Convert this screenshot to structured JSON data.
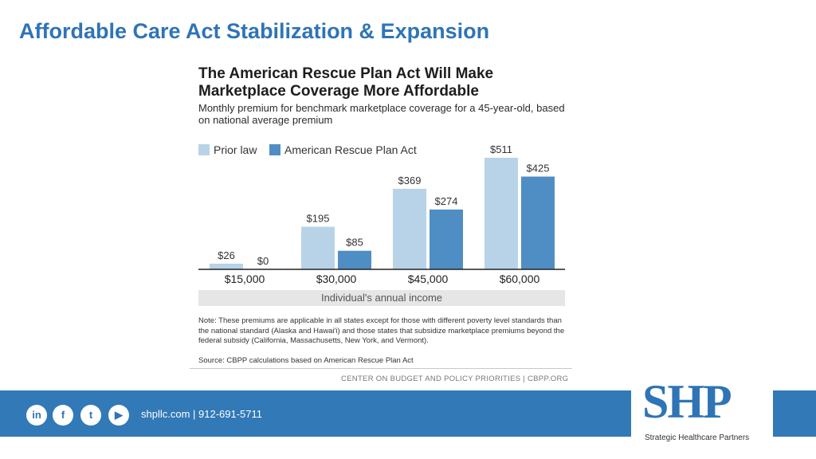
{
  "slide": {
    "title": "Affordable Care Act Stabilization & Expansion"
  },
  "chart_data": {
    "type": "bar",
    "title": "The American Rescue Plan Act Will Make Marketplace Coverage More Affordable",
    "subtitle": "Monthly premium for benchmark marketplace coverage for a 45-year-old, based on national average premium",
    "categories": [
      "$15,000",
      "$30,000",
      "$45,000",
      "$60,000"
    ],
    "series": [
      {
        "name": "Prior law",
        "values": [
          26,
          195,
          369,
          511
        ],
        "labels": [
          "$26",
          "$195",
          "$369",
          "$511"
        ],
        "color": "#b8d3e8"
      },
      {
        "name": "American Rescue Plan Act",
        "values": [
          0,
          85,
          274,
          425
        ],
        "labels": [
          "$0",
          "$85",
          "$274",
          "$425"
        ],
        "color": "#4f8ec4"
      }
    ],
    "xlabel": "Individual's annual income",
    "ylabel": "",
    "ylim": [
      0,
      511
    ],
    "legend": "top-left"
  },
  "note": "Note: These premiums are applicable in all states except for those with different poverty level standards than the national standard (Alaska and Hawai'i) and those states that subsidize marketplace premiums beyond the federal subsidy (California, Massachusetts, New York, and Vermont).",
  "source": "Source: CBPP calculations based on American Rescue Plan Act",
  "credit": "CENTER ON BUDGET AND POLICY PRIORITIES | CBPP.ORG",
  "footer": {
    "contact": "shpllc.com | 912-691-5711",
    "social": [
      {
        "name": "linkedin-icon",
        "glyph": "in"
      },
      {
        "name": "facebook-icon",
        "glyph": "f"
      },
      {
        "name": "twitter-icon",
        "glyph": "t"
      },
      {
        "name": "youtube-icon",
        "glyph": "▶"
      }
    ]
  },
  "logo": {
    "text": "SHP",
    "subtitle": "Strategic Healthcare Partners"
  },
  "colors": {
    "accent": "#2f74b5",
    "footer": "#3279b7"
  }
}
